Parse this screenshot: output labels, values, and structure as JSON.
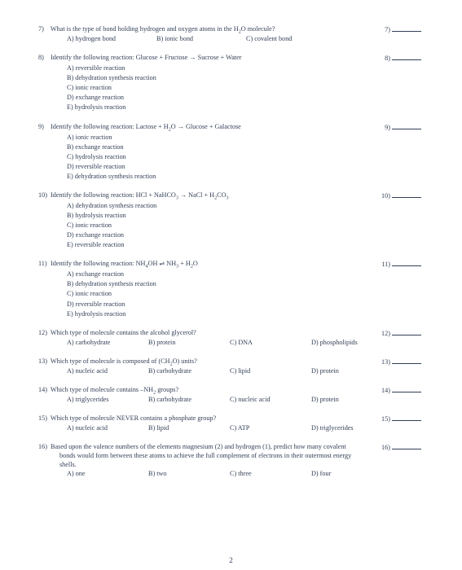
{
  "page_number": "2",
  "colors": {
    "text": "#323f56",
    "bg": "#ffffff"
  },
  "font": {
    "family": "Times New Roman",
    "size_pt": 8.2
  },
  "questions": [
    {
      "num": "7)",
      "stem": "What is the type of bond holding hydrogen and oxygen atoms in the H₂O molecule?",
      "right": "7)",
      "choices_layout": "h",
      "col_widths": [
        "110px",
        "110px",
        "120px",
        "110px"
      ],
      "choices": [
        {
          "label": "A) hydrogen bond"
        },
        {
          "label": "B) ionic bond"
        },
        {
          "label": "C) covalent bond"
        }
      ]
    },
    {
      "num": "8)",
      "stem": "Identify the following reaction:  Glucose + Fructose → Sucrose + Water",
      "right": "8)",
      "choices_layout": "v",
      "choices": [
        {
          "label": "A) reversible reaction"
        },
        {
          "label": "B) dehydration synthesis reaction"
        },
        {
          "label": "C) ionic reaction"
        },
        {
          "label": "D) exchange reaction"
        },
        {
          "label": "E) hydrolysis reaction"
        }
      ]
    },
    {
      "num": "9)",
      "stem": "Identify the following reaction: Lactose + H₂O → Glucose + Galactose",
      "right": "9)",
      "choices_layout": "v",
      "choices": [
        {
          "label": "A) ionic reaction"
        },
        {
          "label": "B) exchange reaction"
        },
        {
          "label": "C) hydrolysis reaction"
        },
        {
          "label": "D) reversible reaction"
        },
        {
          "label": "E) dehydration synthesis reaction"
        }
      ]
    },
    {
      "num": "10)",
      "stem": "Identify the following reaction: HCl + NaHCO₃ → NaCl + H₂CO₃",
      "right": "10)",
      "choices_layout": "v",
      "choices": [
        {
          "label": "A) dehydration synthesis reaction"
        },
        {
          "label": "B) hydrolysis reaction"
        },
        {
          "label": "C) ionic reaction"
        },
        {
          "label": "D) exchange reaction"
        },
        {
          "label": "E) reversible reaction"
        }
      ]
    },
    {
      "num": "11)",
      "stem": "Identify the following reaction: NH₄OH ⇌ NH₃ + H₂O",
      "right": "11)",
      "choices_layout": "v",
      "choices": [
        {
          "label": "A) exchange reaction"
        },
        {
          "label": "B) dehydration synthesis reaction"
        },
        {
          "label": "C) ionic reaction"
        },
        {
          "label": "D) reversible reaction"
        },
        {
          "label": "E) hydrolysis reaction"
        }
      ]
    },
    {
      "num": "12)",
      "stem": "Which type of molecule contains the alcohol glycerol?",
      "right": "12)",
      "choices_layout": "h",
      "col_widths": [
        "100px",
        "100px",
        "100px",
        "110px"
      ],
      "choices": [
        {
          "label": "A) carbohydrate"
        },
        {
          "label": "B) protein"
        },
        {
          "label": "C) DNA"
        },
        {
          "label": "D) phospholipids"
        }
      ]
    },
    {
      "num": "13)",
      "stem": "Which type of molecule is composed of (CH₂O) units?",
      "right": "13)",
      "choices_layout": "h",
      "col_widths": [
        "100px",
        "100px",
        "100px",
        "110px"
      ],
      "choices": [
        {
          "label": "A) nucleic acid"
        },
        {
          "label": "B) carbohydrate"
        },
        {
          "label": "C) lipid"
        },
        {
          "label": "D) protein"
        }
      ]
    },
    {
      "num": "14)",
      "stem": "Which type of molecule contains –NH₂ groups?",
      "right": "14)",
      "choices_layout": "h",
      "col_widths": [
        "100px",
        "100px",
        "100px",
        "110px"
      ],
      "choices": [
        {
          "label": "A) triglycerides"
        },
        {
          "label": "B) carbohydrate"
        },
        {
          "label": "C) nucleic acid"
        },
        {
          "label": "D) protein"
        }
      ]
    },
    {
      "num": "15)",
      "stem": "Which type of molecule NEVER contains a phosphate group?",
      "right": "15)",
      "choices_layout": "h",
      "col_widths": [
        "100px",
        "100px",
        "100px",
        "110px"
      ],
      "choices": [
        {
          "label": "A) nucleic acid"
        },
        {
          "label": "B) lipid"
        },
        {
          "label": "C) ATP"
        },
        {
          "label": "D) triglycerides"
        }
      ]
    },
    {
      "num": "16)",
      "stem": "Based upon the valence numbers of the elements magnesium (2) and hydrogen (1), predict how many covalent bonds would form between these atoms to achieve the full complement of electrons in their outermost energy shells.",
      "right": "16)",
      "choices_layout": "h",
      "col_widths": [
        "100px",
        "100px",
        "100px",
        "110px"
      ],
      "choices": [
        {
          "label": "A) one"
        },
        {
          "label": "B) two"
        },
        {
          "label": "C) three"
        },
        {
          "label": "D) four"
        }
      ]
    }
  ]
}
